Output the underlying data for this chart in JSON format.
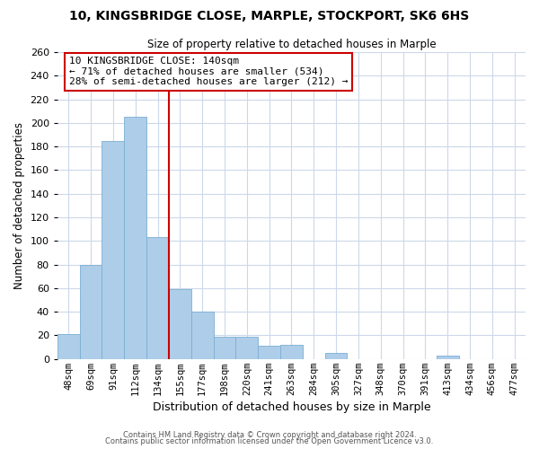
{
  "title": "10, KINGSBRIDGE CLOSE, MARPLE, STOCKPORT, SK6 6HS",
  "subtitle": "Size of property relative to detached houses in Marple",
  "xlabel": "Distribution of detached houses by size in Marple",
  "ylabel": "Number of detached properties",
  "bar_labels": [
    "48sqm",
    "69sqm",
    "91sqm",
    "112sqm",
    "134sqm",
    "155sqm",
    "177sqm",
    "198sqm",
    "220sqm",
    "241sqm",
    "263sqm",
    "284sqm",
    "305sqm",
    "327sqm",
    "348sqm",
    "370sqm",
    "391sqm",
    "413sqm",
    "434sqm",
    "456sqm",
    "477sqm"
  ],
  "bar_values": [
    21,
    80,
    185,
    205,
    103,
    59,
    40,
    19,
    19,
    11,
    12,
    0,
    5,
    0,
    0,
    0,
    0,
    3,
    0,
    0,
    0
  ],
  "bar_color": "#aecde8",
  "bar_edge_color": "#7aafd4",
  "vline_color": "#cc0000",
  "ylim": [
    0,
    260
  ],
  "yticks": [
    0,
    20,
    40,
    60,
    80,
    100,
    120,
    140,
    160,
    180,
    200,
    220,
    240,
    260
  ],
  "annotation_title": "10 KINGSBRIDGE CLOSE: 140sqm",
  "annotation_line1": "← 71% of detached houses are smaller (534)",
  "annotation_line2": "28% of semi-detached houses are larger (212) →",
  "annotation_box_color": "#ffffff",
  "annotation_box_edge": "#cc0000",
  "footer_line1": "Contains HM Land Registry data © Crown copyright and database right 2024.",
  "footer_line2": "Contains public sector information licensed under the Open Government Licence v3.0.",
  "background_color": "#ffffff",
  "grid_color": "#ccd8ea"
}
